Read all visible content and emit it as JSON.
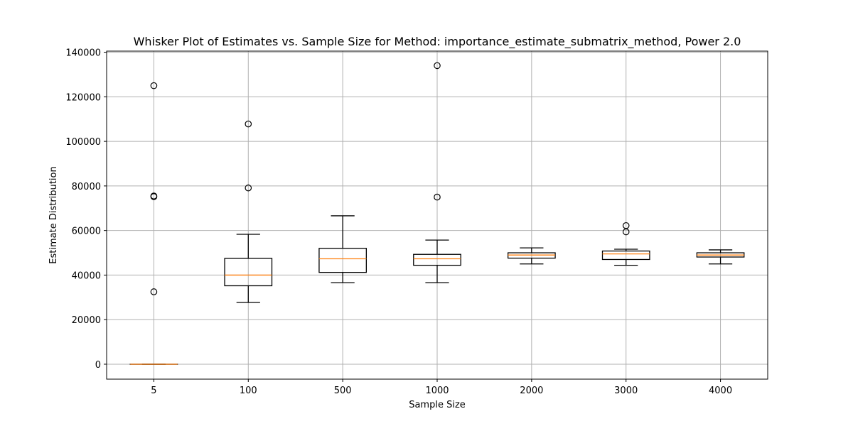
{
  "chart_data": {
    "type": "boxplot",
    "title": "Whisker Plot of Estimates vs. Sample Size for Method: importance_estimate_submatrix_method, Power 2.0",
    "xlabel": "Sample Size",
    "ylabel": "Estimate Distribution",
    "categories": [
      "5",
      "100",
      "500",
      "1000",
      "2000",
      "3000",
      "4000"
    ],
    "ylim": [
      -6700,
      140500
    ],
    "yticks": [
      0,
      20000,
      40000,
      60000,
      80000,
      100000,
      120000,
      140000
    ],
    "grid": true,
    "colors": {
      "box": "#000000",
      "median": "#ff7f0e",
      "grid": "#b0b0b0"
    },
    "boxes": [
      {
        "category": "5",
        "whisker_low": 0,
        "q1": 0,
        "median": 0,
        "q3": 0,
        "whisker_high": 0,
        "outliers": [
          125000,
          75500,
          75200,
          32500
        ]
      },
      {
        "category": "100",
        "whisker_low": 27700,
        "q1": 35200,
        "median": 40000,
        "q3": 47500,
        "whisker_high": 58300,
        "outliers": [
          107800,
          79100
        ]
      },
      {
        "category": "500",
        "whisker_low": 36600,
        "q1": 41200,
        "median": 47300,
        "q3": 52000,
        "whisker_high": 66600,
        "outliers": []
      },
      {
        "category": "1000",
        "whisker_low": 36600,
        "q1": 44400,
        "median": 47300,
        "q3": 49300,
        "whisker_high": 55700,
        "outliers": [
          134000,
          75000
        ]
      },
      {
        "category": "2000",
        "whisker_low": 45000,
        "q1": 47600,
        "median": 49000,
        "q3": 50000,
        "whisker_high": 52200,
        "outliers": []
      },
      {
        "category": "3000",
        "whisker_low": 44400,
        "q1": 47000,
        "median": 49500,
        "q3": 50800,
        "whisker_high": 51600,
        "outliers": [
          62200,
          59400
        ]
      },
      {
        "category": "4000",
        "whisker_low": 45000,
        "q1": 48100,
        "median": 49000,
        "q3": 50000,
        "whisker_high": 51300,
        "outliers": []
      }
    ]
  }
}
